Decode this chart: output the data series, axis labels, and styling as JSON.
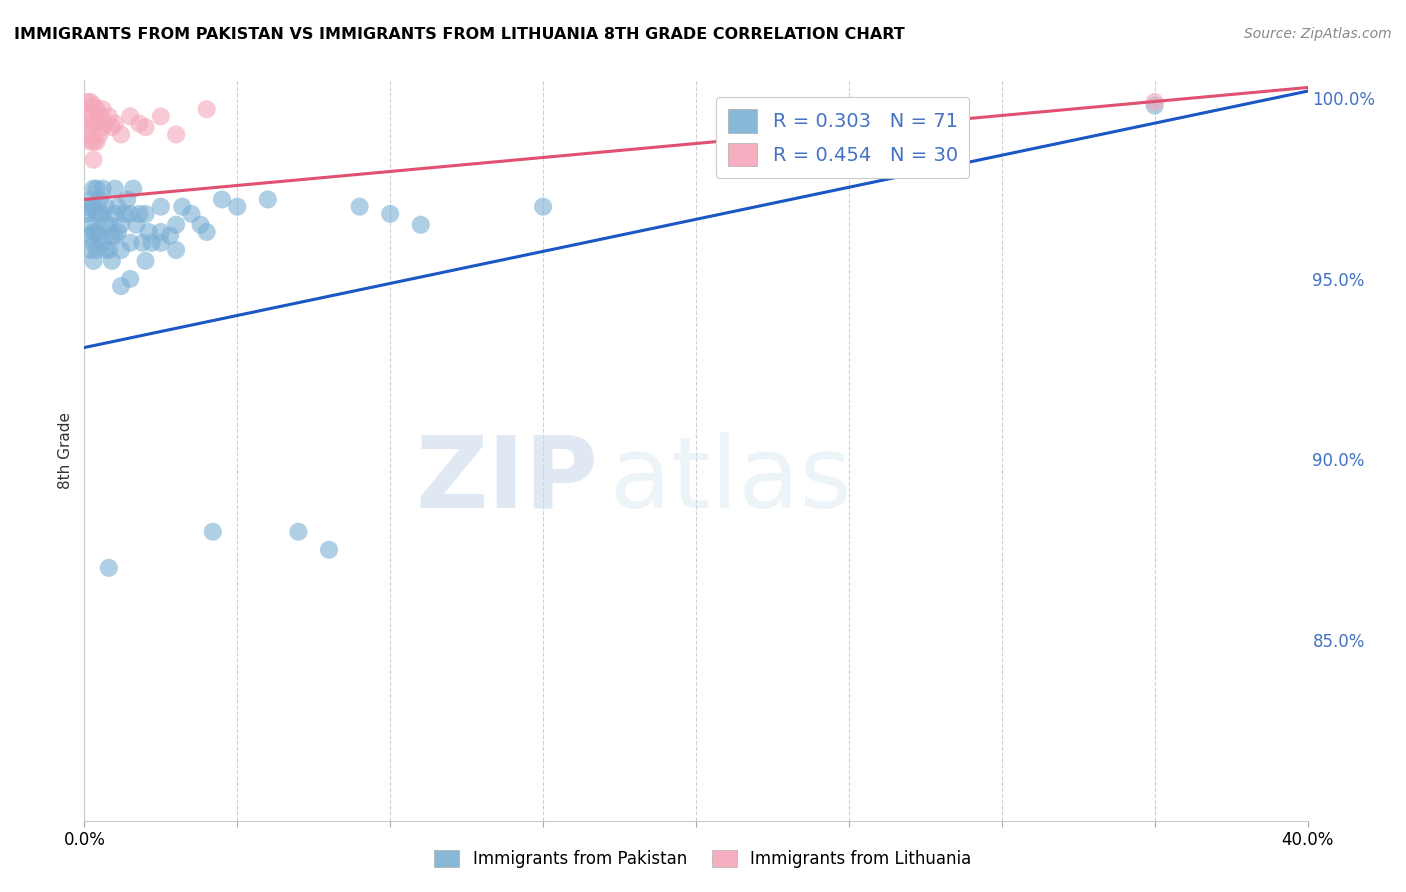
{
  "title": "IMMIGRANTS FROM PAKISTAN VS IMMIGRANTS FROM LITHUANIA 8TH GRADE CORRELATION CHART",
  "source": "Source: ZipAtlas.com",
  "ylabel": "8th Grade",
  "legend_label_blue": "Immigrants from Pakistan",
  "legend_label_pink": "Immigrants from Lithuania",
  "R_blue": 0.303,
  "N_blue": 71,
  "R_pink": 0.454,
  "N_pink": 30,
  "xlim": [
    0.0,
    0.4
  ],
  "ylim": [
    0.8,
    1.005
  ],
  "color_blue": "#7bafd4",
  "color_pink": "#f4a7b9",
  "trendline_blue": "#1a56c4",
  "trendline_pink": "#e05070",
  "watermark_zip": "ZIP",
  "watermark_atlas": "atlas",
  "background": "#ffffff",
  "grid_color": "#d0d0d0",
  "blue_x": [
    0.001,
    0.001,
    0.002,
    0.002,
    0.002,
    0.002,
    0.003,
    0.003,
    0.003,
    0.003,
    0.003,
    0.004,
    0.004,
    0.004,
    0.004,
    0.005,
    0.005,
    0.005,
    0.006,
    0.006,
    0.006,
    0.007,
    0.007,
    0.007,
    0.008,
    0.008,
    0.009,
    0.009,
    0.01,
    0.01,
    0.01,
    0.011,
    0.011,
    0.012,
    0.012,
    0.013,
    0.014,
    0.015,
    0.015,
    0.016,
    0.017,
    0.018,
    0.019,
    0.02,
    0.021,
    0.022,
    0.025,
    0.025,
    0.028,
    0.03,
    0.032,
    0.035,
    0.038,
    0.04,
    0.042,
    0.045,
    0.05,
    0.06,
    0.07,
    0.08,
    0.09,
    0.1,
    0.11,
    0.15,
    0.02,
    0.025,
    0.03,
    0.35,
    0.015,
    0.012,
    0.008
  ],
  "blue_y": [
    0.97,
    0.968,
    0.972,
    0.965,
    0.962,
    0.958,
    0.975,
    0.97,
    0.963,
    0.96,
    0.955,
    0.975,
    0.968,
    0.963,
    0.958,
    0.972,
    0.968,
    0.962,
    0.975,
    0.968,
    0.96,
    0.97,
    0.965,
    0.958,
    0.965,
    0.958,
    0.962,
    0.955,
    0.975,
    0.968,
    0.962,
    0.97,
    0.963,
    0.965,
    0.958,
    0.968,
    0.972,
    0.968,
    0.96,
    0.975,
    0.965,
    0.968,
    0.96,
    0.968,
    0.963,
    0.96,
    0.97,
    0.963,
    0.962,
    0.965,
    0.97,
    0.968,
    0.965,
    0.963,
    0.88,
    0.972,
    0.97,
    0.972,
    0.88,
    0.875,
    0.97,
    0.968,
    0.965,
    0.97,
    0.955,
    0.96,
    0.958,
    0.998,
    0.95,
    0.948,
    0.87
  ],
  "pink_x": [
    0.001,
    0.001,
    0.001,
    0.002,
    0.002,
    0.002,
    0.002,
    0.003,
    0.003,
    0.003,
    0.003,
    0.004,
    0.004,
    0.004,
    0.005,
    0.005,
    0.006,
    0.006,
    0.007,
    0.008,
    0.009,
    0.01,
    0.012,
    0.015,
    0.018,
    0.02,
    0.025,
    0.03,
    0.04,
    0.35
  ],
  "pink_y": [
    0.999,
    0.995,
    0.99,
    0.999,
    0.996,
    0.992,
    0.988,
    0.998,
    0.993,
    0.988,
    0.983,
    0.997,
    0.993,
    0.988,
    0.995,
    0.99,
    0.997,
    0.992,
    0.993,
    0.995,
    0.992,
    0.993,
    0.99,
    0.995,
    0.993,
    0.992,
    0.995,
    0.99,
    0.997,
    0.999
  ],
  "trendline_blue_x0": 0.0,
  "trendline_blue_y0": 0.931,
  "trendline_blue_x1": 0.4,
  "trendline_blue_y1": 1.002,
  "trendline_pink_x0": 0.0,
  "trendline_pink_y0": 0.972,
  "trendline_pink_x1": 0.4,
  "trendline_pink_y1": 1.003
}
